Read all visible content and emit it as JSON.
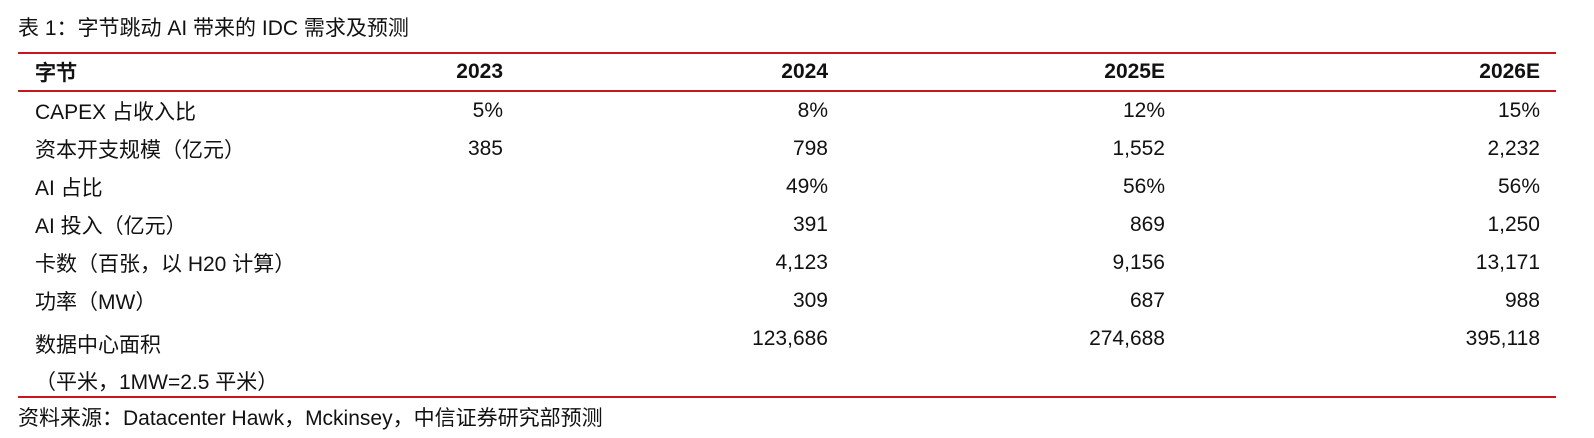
{
  "title": "表 1：字节跳动 AI 带来的 IDC 需求及预测",
  "table": {
    "header": [
      "字节",
      "2023",
      "2024",
      "2025E",
      "2026E"
    ],
    "rows": [
      {
        "label": [
          "CAPEX 占收入比"
        ],
        "cells": [
          "5%",
          "8%",
          "12%",
          "15%"
        ]
      },
      {
        "label": [
          "资本开支规模（亿元）"
        ],
        "cells": [
          "385",
          "798",
          "1,552",
          "2,232"
        ]
      },
      {
        "label": [
          "AI 占比"
        ],
        "cells": [
          null,
          "49%",
          "56%",
          "56%"
        ]
      },
      {
        "label": [
          "AI 投入（亿元）"
        ],
        "cells": [
          null,
          "391",
          "869",
          "1,250"
        ]
      },
      {
        "label": [
          "卡数（百张，以 H20 计算）"
        ],
        "cells": [
          null,
          "4,123",
          "9,156",
          "13,171"
        ]
      },
      {
        "label": [
          "功率（MW）"
        ],
        "cells": [
          null,
          "309",
          "687",
          "988"
        ]
      },
      {
        "label": [
          "数据中心面积",
          "（平米，1MW=2.5 平米）"
        ],
        "cells": [
          null,
          "123,686",
          "274,688",
          "395,118"
        ]
      }
    ]
  },
  "source": "资料来源：Datacenter Hawk，Mckinsey，中信证券研究部预测"
}
